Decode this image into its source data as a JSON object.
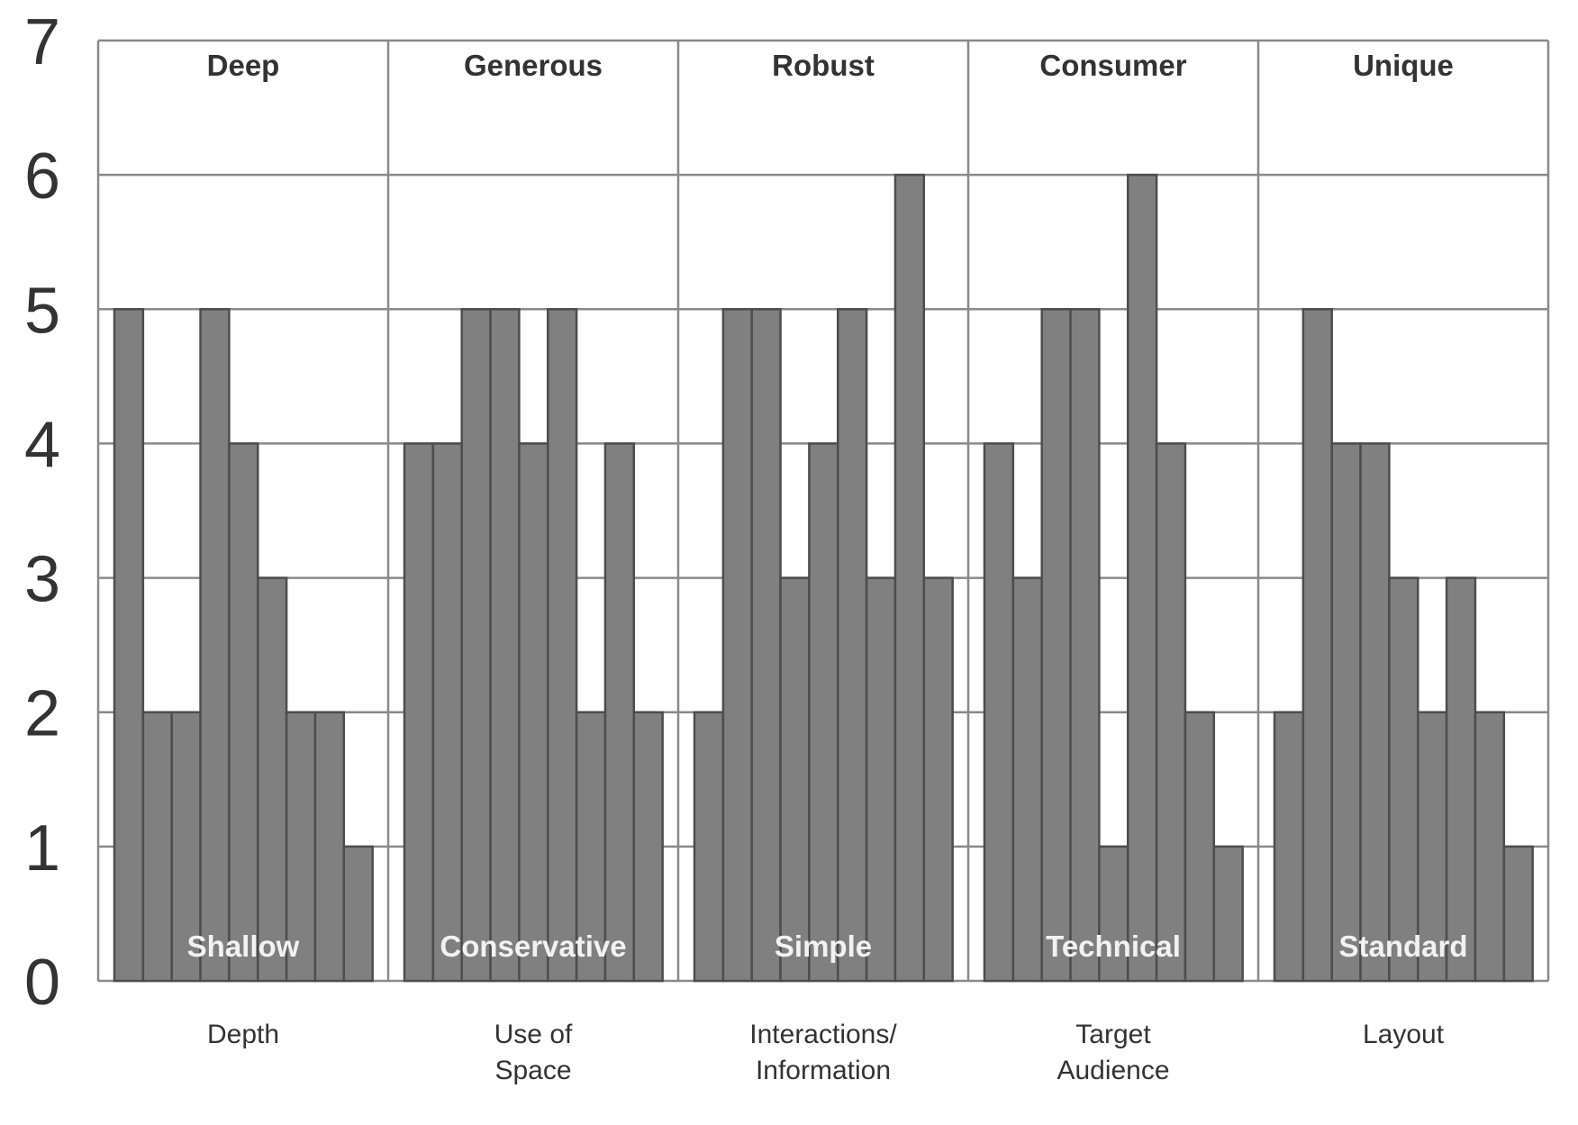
{
  "chart_data": {
    "type": "bar",
    "ylim": [
      0,
      7
    ],
    "yticks": [
      "0",
      "1",
      "2",
      "3",
      "4",
      "5",
      "6",
      "7"
    ],
    "grid": true,
    "colors": {
      "bar_fill": "#808080",
      "bar_stroke": "#4d4d4d",
      "grid": "#8a8a8a",
      "tick_text": "#333333",
      "top_label": "#333333",
      "bottom_label": "#f2f2f2",
      "category_label": "#333333"
    },
    "groups": [
      {
        "category": "Depth",
        "category_lines": [
          "Depth"
        ],
        "top_label": "Deep",
        "bottom_label": "Shallow",
        "values": [
          5,
          2,
          2,
          5,
          4,
          3,
          2,
          2,
          1
        ]
      },
      {
        "category": "Use of Space",
        "category_lines": [
          "Use of",
          "Space"
        ],
        "top_label": "Generous",
        "bottom_label": "Conservative",
        "values": [
          4,
          4,
          5,
          5,
          4,
          5,
          2,
          4,
          2
        ]
      },
      {
        "category": "Interactions/ Information",
        "category_lines": [
          "Interactions/",
          "Information"
        ],
        "top_label": "Robust",
        "bottom_label": "Simple",
        "values": [
          2,
          5,
          5,
          3,
          4,
          5,
          3,
          6,
          3
        ]
      },
      {
        "category": "Target Audience",
        "category_lines": [
          "Target",
          "Audience"
        ],
        "top_label": "Consumer",
        "bottom_label": "Technical",
        "values": [
          4,
          3,
          5,
          5,
          1,
          6,
          4,
          2,
          1
        ]
      },
      {
        "category": "Layout",
        "category_lines": [
          "Layout"
        ],
        "top_label": "Unique",
        "bottom_label": "Standard",
        "values": [
          2,
          5,
          4,
          4,
          3,
          2,
          3,
          2,
          1
        ]
      }
    ]
  }
}
